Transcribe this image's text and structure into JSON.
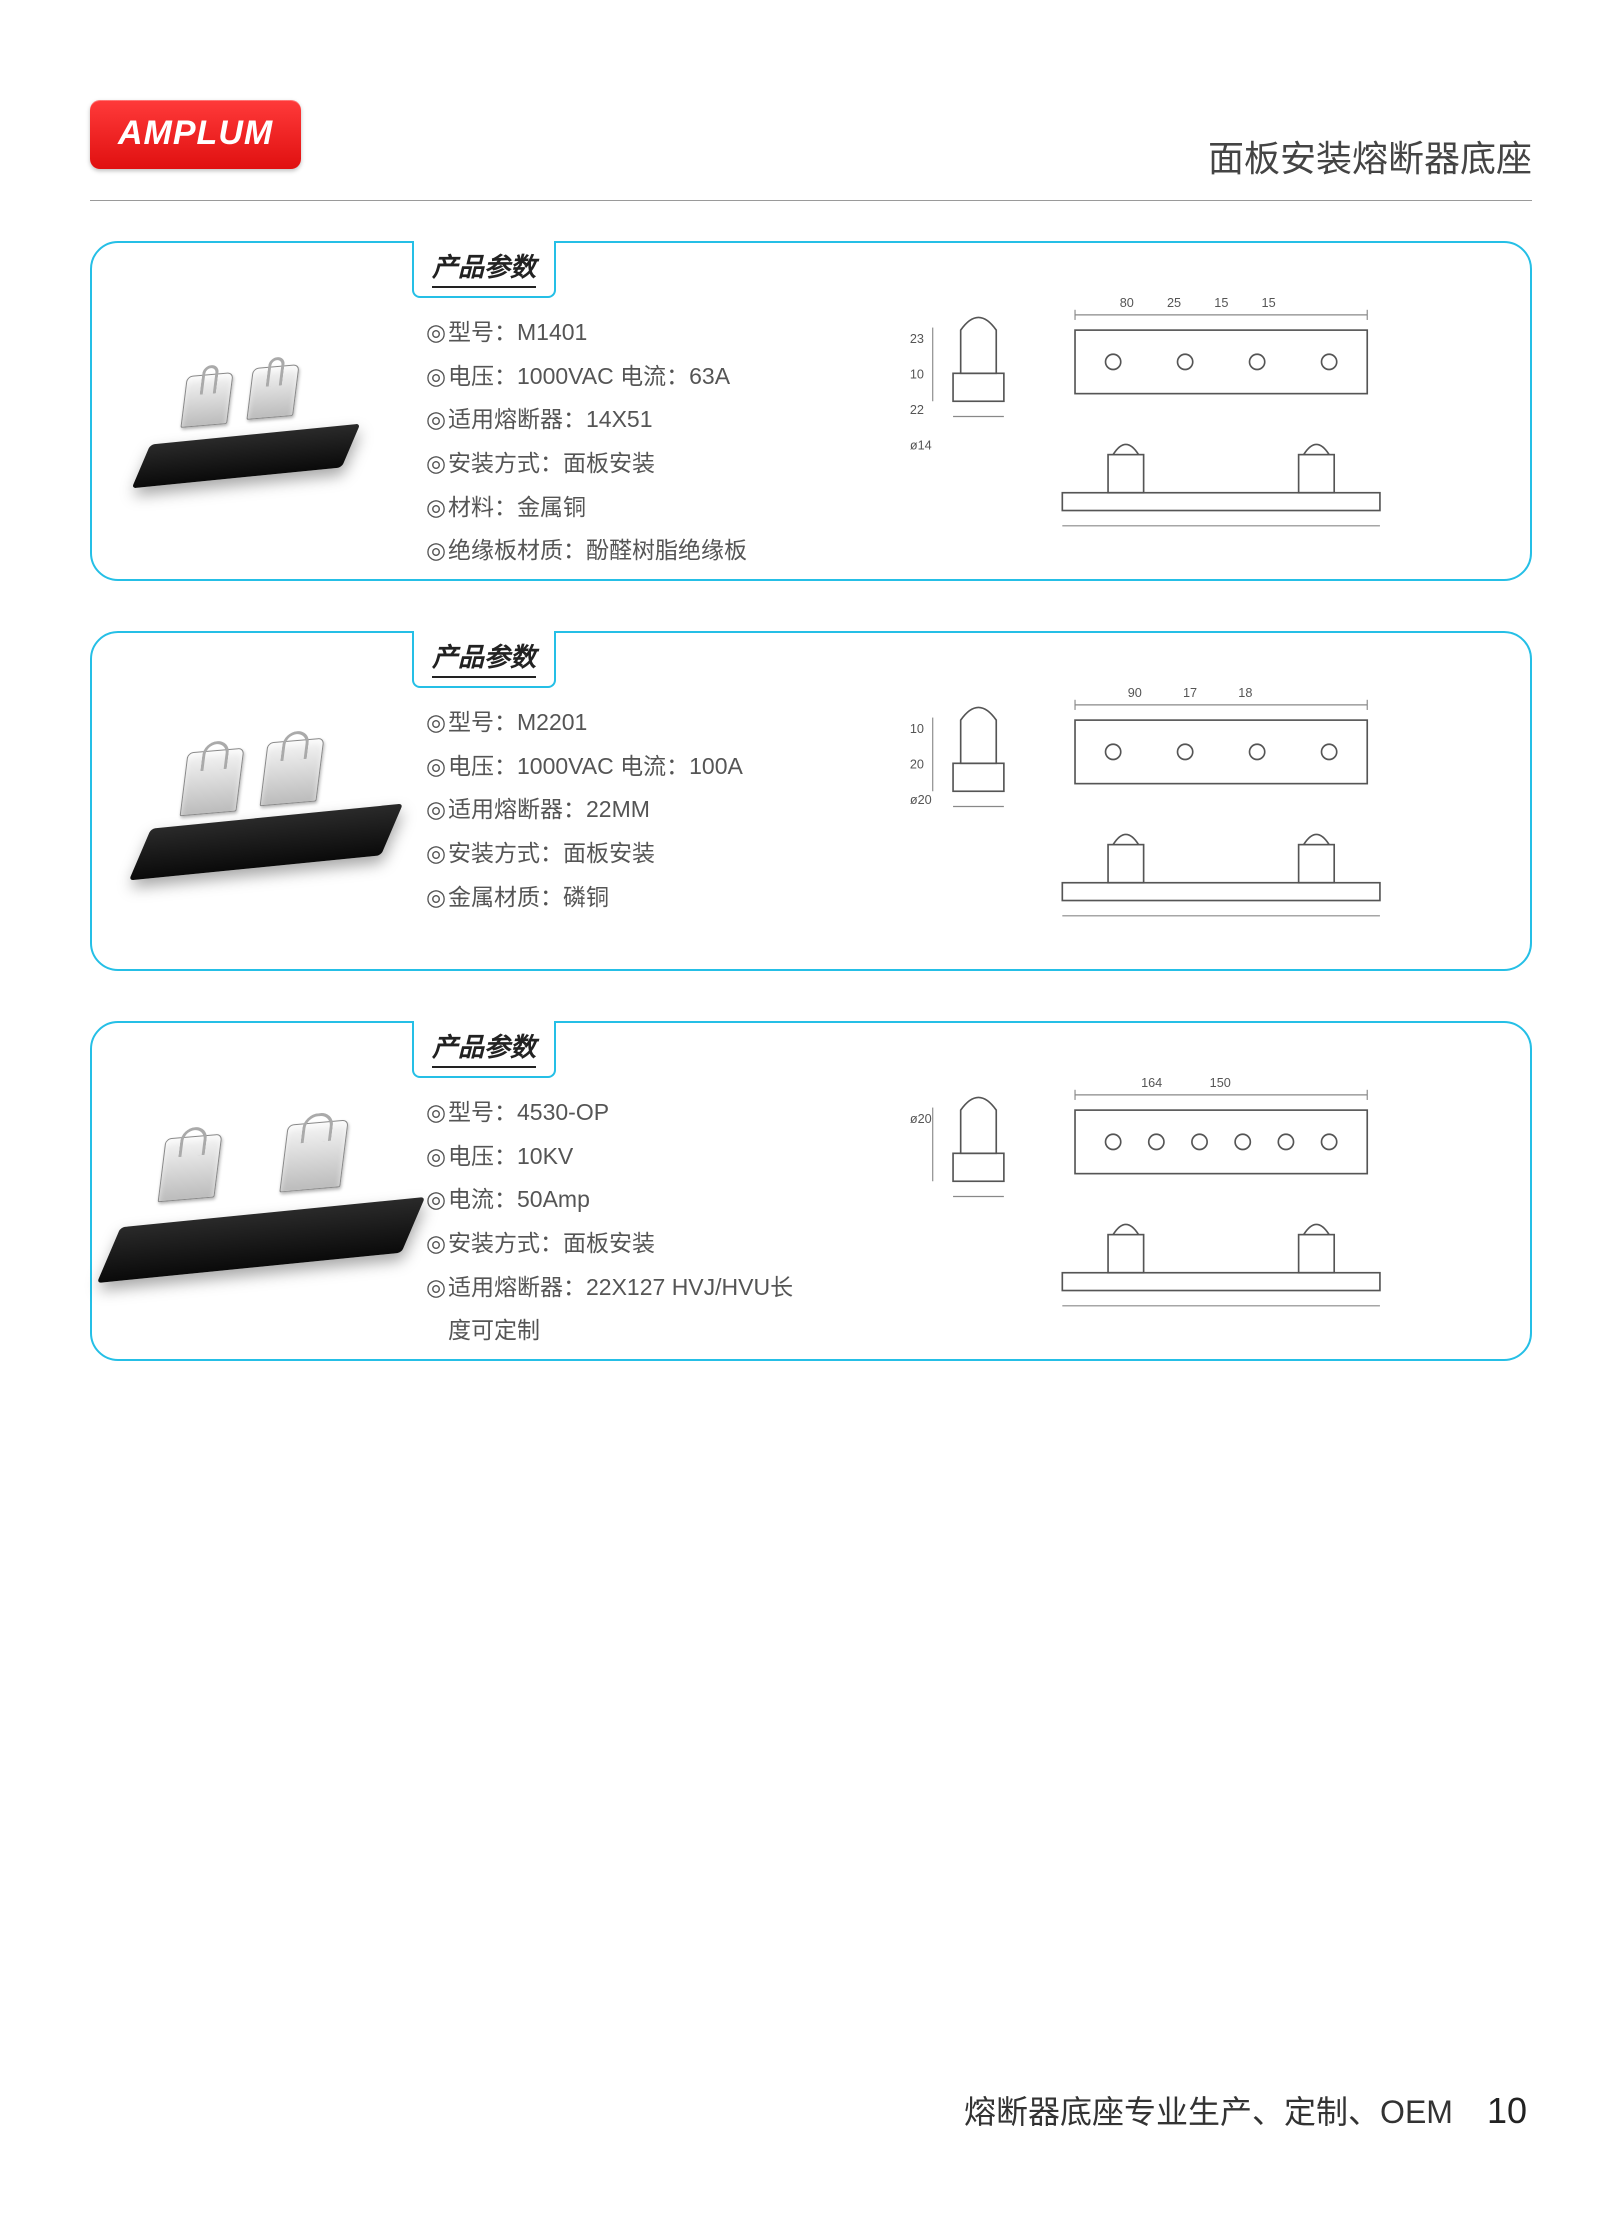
{
  "brand": "AMPLUM",
  "page_title": "面板安装熔断器底座",
  "bullet_glyph": "◎",
  "spec_header": "产品参数",
  "footer_text": "熔断器底座专业生产、定制、OEM",
  "page_number": "10",
  "colors": {
    "accent": "#25bfe6",
    "brand_red": "#e01010"
  },
  "products": [
    {
      "photo_size": "sm",
      "specs": [
        "型号：M1401",
        "电压：1000VAC 电流：63A",
        "适用熔断器：14X51",
        "安装方式：面板安装",
        "材料：金属铜",
        "绝缘板材质：酚醛树脂绝缘板"
      ],
      "diagram": {
        "top_dims": [
          "80",
          "25",
          "15",
          "15"
        ],
        "side_dims": [
          "23",
          "10",
          "22",
          "ø14"
        ],
        "holes": 4
      }
    },
    {
      "photo_size": "md",
      "specs": [
        "型号：M2201",
        "电压：1000VAC 电流：100A",
        "适用熔断器：22MM",
        "安装方式：面板安装",
        "金属材质：磷铜"
      ],
      "diagram": {
        "top_dims": [
          "90",
          "17",
          "18"
        ],
        "side_dims": [
          "10",
          "20",
          "ø20"
        ],
        "holes": 4
      }
    },
    {
      "photo_size": "lg",
      "specs": [
        "型号：4530-OP",
        "电压：10KV",
        "电流：50Amp",
        "安装方式：面板安装",
        "适用熔断器：22X127 HVJ/HVU长度可定制"
      ],
      "diagram": {
        "top_dims": [
          "164",
          "150"
        ],
        "side_dims": [
          "ø20"
        ],
        "holes": 6
      }
    }
  ]
}
